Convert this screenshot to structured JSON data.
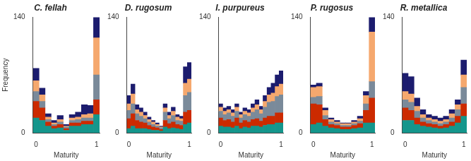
{
  "chart_data": [
    {
      "type": "bar",
      "title": "C. fellah",
      "stacked": true,
      "grid": false,
      "bins": [
        -0.05,
        0.05,
        0.15,
        0.25,
        0.35,
        0.45,
        0.55,
        0.65,
        0.75,
        0.85,
        0.95,
        1.05
      ],
      "xlim": [
        -0.05,
        1.05
      ],
      "xticks": [
        0,
        1
      ],
      "ylim": [
        0,
        140
      ],
      "yticks": [
        0,
        140
      ],
      "x_label": "Maturity",
      "y_label": "Frequency",
      "series": [
        {
          "color": "#14968c",
          "values": [
            18,
            15,
            8,
            5,
            6,
            3,
            8,
            8,
            10,
            10,
            22
          ]
        },
        {
          "color": "#cc2a00",
          "values": [
            20,
            15,
            5,
            3,
            4,
            2,
            4,
            4,
            4,
            4,
            18
          ]
        },
        {
          "color": "#7a8a9a",
          "values": [
            12,
            8,
            3,
            2,
            3,
            2,
            3,
            4,
            4,
            4,
            30
          ]
        },
        {
          "color": "#f5a86e",
          "values": [
            13,
            8,
            3,
            2,
            3,
            1,
            3,
            3,
            4,
            5,
            45
          ]
        },
        {
          "color": "#1c1c6e",
          "values": [
            15,
            8,
            4,
            3,
            5,
            2,
            4,
            6,
            12,
            10,
            25
          ]
        }
      ]
    },
    {
      "type": "bar",
      "title": "D. rugosum",
      "stacked": true,
      "grid": false,
      "bins": [
        -0.0333,
        0.0333,
        0.1,
        0.1667,
        0.2333,
        0.3,
        0.3667,
        0.4333,
        0.5,
        0.5667,
        0.6333,
        0.7,
        0.7667,
        0.8333,
        0.9,
        0.9667,
        1.0333
      ],
      "xlim": [
        -0.0333,
        1.0333
      ],
      "xticks": [
        0,
        1
      ],
      "ylim": [
        0,
        140
      ],
      "yticks": [
        0,
        140
      ],
      "x_label": "Maturity",
      "series": [
        {
          "color": "#14968c",
          "values": [
            5,
            8,
            5,
            5,
            5,
            4,
            3,
            3,
            2,
            7,
            5,
            6,
            5,
            4,
            10,
            12
          ]
        },
        {
          "color": "#cc2a00",
          "values": [
            12,
            15,
            10,
            8,
            7,
            5,
            4,
            3,
            2,
            8,
            6,
            7,
            5,
            5,
            15,
            15
          ]
        },
        {
          "color": "#7a8a9a",
          "values": [
            10,
            12,
            8,
            7,
            5,
            4,
            3,
            2,
            2,
            10,
            6,
            8,
            5,
            5,
            20,
            22
          ]
        },
        {
          "color": "#f5a86e",
          "values": [
            8,
            12,
            5,
            5,
            4,
            3,
            3,
            2,
            1,
            5,
            4,
            5,
            4,
            3,
            15,
            16
          ]
        },
        {
          "color": "#1c1c6e",
          "values": [
            10,
            12,
            6,
            5,
            4,
            3,
            2,
            2,
            1,
            5,
            4,
            5,
            3,
            3,
            20,
            20
          ]
        }
      ]
    },
    {
      "type": "bar",
      "title": "I. purpureus",
      "stacked": true,
      "grid": false,
      "bins": [
        -0.0333,
        0.0333,
        0.1,
        0.1667,
        0.2333,
        0.3,
        0.3667,
        0.4333,
        0.5,
        0.5667,
        0.6333,
        0.7,
        0.7667,
        0.8333,
        0.9,
        0.9667,
        1.0333
      ],
      "xlim": [
        -0.0333,
        1.0333
      ],
      "xticks": [
        0,
        1
      ],
      "ylim": [
        0,
        140
      ],
      "yticks": [
        0,
        140
      ],
      "x_label": "Maturity",
      "series": [
        {
          "color": "#14968c",
          "values": [
            8,
            7,
            7,
            6,
            8,
            5,
            7,
            6,
            8,
            8,
            7,
            9,
            10,
            10,
            12,
            12
          ]
        },
        {
          "color": "#cc2a00",
          "values": [
            10,
            8,
            9,
            7,
            10,
            7,
            8,
            7,
            8,
            9,
            7,
            9,
            10,
            10,
            12,
            12
          ]
        },
        {
          "color": "#7a8a9a",
          "values": [
            8,
            7,
            8,
            7,
            8,
            6,
            7,
            7,
            9,
            11,
            9,
            13,
            17,
            18,
            20,
            22
          ]
        },
        {
          "color": "#f5a86e",
          "values": [
            5,
            4,
            4,
            4,
            5,
            4,
            4,
            4,
            5,
            6,
            5,
            7,
            9,
            10,
            12,
            13
          ]
        },
        {
          "color": "#1c1c6e",
          "values": [
            4,
            4,
            4,
            4,
            4,
            3,
            4,
            4,
            5,
            6,
            4,
            7,
            9,
            12,
            14,
            16
          ]
        }
      ]
    },
    {
      "type": "bar",
      "title": "P. rugosus",
      "stacked": true,
      "grid": false,
      "bins": [
        -0.05,
        0.05,
        0.15,
        0.25,
        0.35,
        0.45,
        0.55,
        0.65,
        0.75,
        0.85,
        0.95,
        1.05
      ],
      "xlim": [
        -0.05,
        1.05
      ],
      "xticks": [
        0,
        1
      ],
      "ylim": [
        0,
        140
      ],
      "yticks": [
        0,
        140
      ],
      "x_label": "Maturity",
      "series": [
        {
          "color": "#14968c",
          "values": [
            10,
            12,
            8,
            6,
            5,
            4,
            4,
            5,
            6,
            12,
            12
          ]
        },
        {
          "color": "#cc2a00",
          "values": [
            25,
            22,
            8,
            4,
            4,
            3,
            3,
            4,
            5,
            15,
            30
          ]
        },
        {
          "color": "#7a8a9a",
          "values": [
            8,
            10,
            5,
            3,
            2,
            2,
            2,
            2,
            3,
            8,
            20
          ]
        },
        {
          "color": "#f5a86e",
          "values": [
            12,
            12,
            6,
            3,
            2,
            2,
            2,
            2,
            3,
            10,
            60
          ]
        },
        {
          "color": "#1c1c6e",
          "values": [
            3,
            4,
            3,
            2,
            2,
            1,
            1,
            2,
            3,
            5,
            18
          ]
        }
      ]
    },
    {
      "type": "bar",
      "title": "R. metallica",
      "stacked": true,
      "grid": false,
      "bins": [
        -0.05,
        0.05,
        0.15,
        0.25,
        0.35,
        0.45,
        0.55,
        0.65,
        0.75,
        0.85,
        0.95,
        1.05
      ],
      "xlim": [
        -0.05,
        1.05
      ],
      "xticks": [
        0,
        1
      ],
      "ylim": [
        0,
        140
      ],
      "yticks": [
        0,
        140
      ],
      "x_label": "Maturity",
      "series": [
        {
          "color": "#14968c",
          "values": [
            15,
            15,
            10,
            8,
            7,
            6,
            5,
            6,
            8,
            12,
            20
          ]
        },
        {
          "color": "#cc2a00",
          "values": [
            15,
            12,
            8,
            5,
            4,
            4,
            3,
            4,
            5,
            8,
            15
          ]
        },
        {
          "color": "#7a8a9a",
          "values": [
            10,
            10,
            8,
            5,
            4,
            3,
            3,
            3,
            5,
            8,
            20
          ]
        },
        {
          "color": "#f5a86e",
          "values": [
            10,
            10,
            6,
            4,
            3,
            3,
            3,
            3,
            5,
            6,
            15
          ]
        },
        {
          "color": "#1c1c6e",
          "values": [
            22,
            21,
            10,
            6,
            4,
            4,
            4,
            4,
            5,
            6,
            18
          ]
        }
      ]
    }
  ]
}
